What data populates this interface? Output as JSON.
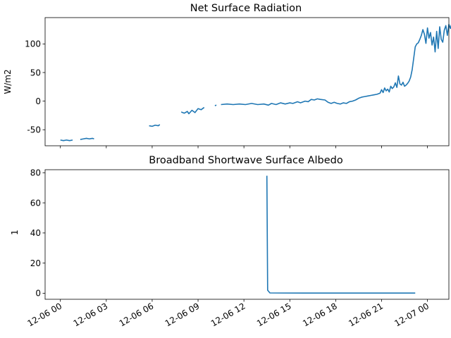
{
  "chart_data": [
    {
      "type": "line",
      "title": "Net Surface Radiation",
      "xlabel": "",
      "ylabel": "W/m2",
      "x_unit": "hours since 12-06 00:00",
      "xlim": [
        -2.1,
        26.6
      ],
      "ylim": [
        -78,
        146
      ],
      "yticks": [
        -50,
        0,
        50,
        100
      ],
      "show_x_tick_labels": false,
      "grid": false,
      "color": "#1f77b4",
      "segments": [
        [
          [
            0.0,
            -68
          ],
          [
            0.2,
            -69
          ],
          [
            0.4,
            -68
          ],
          [
            0.6,
            -69
          ],
          [
            0.8,
            -68
          ]
        ],
        [
          [
            1.3,
            -67
          ],
          [
            1.5,
            -66
          ],
          [
            1.7,
            -65
          ],
          [
            1.9,
            -66
          ],
          [
            2.1,
            -65
          ],
          [
            2.2,
            -66
          ]
        ],
        [
          [
            5.8,
            -43
          ],
          [
            6.0,
            -44
          ],
          [
            6.2,
            -42
          ],
          [
            6.4,
            -43
          ],
          [
            6.5,
            -41
          ]
        ],
        [
          [
            7.9,
            -19
          ],
          [
            8.1,
            -21
          ],
          [
            8.3,
            -18
          ],
          [
            8.4,
            -22
          ],
          [
            8.6,
            -16
          ],
          [
            8.8,
            -20
          ],
          [
            9.0,
            -13
          ],
          [
            9.2,
            -15
          ],
          [
            9.4,
            -11
          ]
        ],
        [
          [
            10.1,
            -8
          ],
          [
            10.2,
            -7
          ]
        ],
        [
          [
            10.5,
            -6
          ],
          [
            10.9,
            -5
          ],
          [
            11.3,
            -6
          ],
          [
            11.7,
            -5
          ],
          [
            12.1,
            -6
          ],
          [
            12.5,
            -4
          ],
          [
            12.9,
            -6
          ],
          [
            13.3,
            -5
          ],
          [
            13.6,
            -7
          ],
          [
            13.8,
            -4
          ],
          [
            14.1,
            -6
          ],
          [
            14.4,
            -3
          ],
          [
            14.7,
            -5
          ],
          [
            15.0,
            -3
          ],
          [
            15.2,
            -4
          ],
          [
            15.5,
            -1
          ],
          [
            15.7,
            -3
          ],
          [
            16.0,
            0
          ],
          [
            16.2,
            -1
          ],
          [
            16.4,
            3
          ],
          [
            16.6,
            2
          ],
          [
            16.8,
            4
          ],
          [
            17.0,
            3
          ],
          [
            17.3,
            2
          ],
          [
            17.5,
            -2
          ],
          [
            17.7,
            -4
          ],
          [
            17.9,
            -2
          ],
          [
            18.1,
            -4
          ],
          [
            18.3,
            -5
          ],
          [
            18.5,
            -3
          ],
          [
            18.7,
            -4
          ],
          [
            18.9,
            -1
          ],
          [
            19.1,
            0
          ],
          [
            19.3,
            2
          ],
          [
            19.5,
            5
          ],
          [
            19.7,
            7
          ],
          [
            19.9,
            8
          ],
          [
            20.1,
            9
          ],
          [
            20.3,
            10
          ],
          [
            20.5,
            11
          ],
          [
            20.7,
            12
          ],
          [
            20.9,
            14
          ],
          [
            21.0,
            20
          ],
          [
            21.1,
            15
          ],
          [
            21.2,
            23
          ],
          [
            21.3,
            18
          ],
          [
            21.4,
            21
          ],
          [
            21.5,
            16
          ],
          [
            21.6,
            26
          ],
          [
            21.7,
            22
          ],
          [
            21.8,
            25
          ],
          [
            21.9,
            32
          ],
          [
            22.0,
            24
          ],
          [
            22.1,
            44
          ],
          [
            22.2,
            30
          ],
          [
            22.3,
            28
          ],
          [
            22.4,
            33
          ],
          [
            22.5,
            26
          ],
          [
            22.6,
            28
          ],
          [
            22.7,
            31
          ],
          [
            22.8,
            35
          ],
          [
            22.9,
            42
          ],
          [
            23.0,
            55
          ],
          [
            23.1,
            75
          ],
          [
            23.2,
            95
          ],
          [
            23.3,
            100
          ],
          [
            23.4,
            102
          ],
          [
            23.5,
            108
          ],
          [
            23.6,
            115
          ],
          [
            23.7,
            125
          ],
          [
            23.8,
            117
          ],
          [
            23.9,
            101
          ],
          [
            24.0,
            128
          ],
          [
            24.1,
            110
          ],
          [
            24.2,
            120
          ],
          [
            24.3,
            98
          ],
          [
            24.4,
            112
          ],
          [
            24.5,
            86
          ],
          [
            24.6,
            122
          ],
          [
            24.7,
            92
          ],
          [
            24.8,
            130
          ],
          [
            24.9,
            108
          ],
          [
            25.0,
            103
          ],
          [
            25.1,
            124
          ],
          [
            25.2,
            132
          ],
          [
            25.3,
            115
          ],
          [
            25.4,
            134
          ],
          [
            25.5,
            127
          ],
          [
            25.6,
            137
          ],
          [
            25.7,
            125
          ],
          [
            25.8,
            131
          ],
          [
            25.9,
            118
          ],
          [
            26.0,
            124
          ],
          [
            26.1,
            113
          ]
        ]
      ]
    },
    {
      "type": "line",
      "title": "Broadband Shortwave Surface Albedo",
      "xlabel": "",
      "ylabel": "1",
      "x_unit": "hours since 12-06 00:00",
      "xlim": [
        -1.0,
        25.4
      ],
      "ylim": [
        -4,
        82
      ],
      "yticks": [
        0,
        20,
        40,
        60,
        80
      ],
      "xticks": [
        "12-06 00",
        "12-06 03",
        "12-06 06",
        "12-06 09",
        "12-06 12",
        "12-06 15",
        "12-06 18",
        "12-06 21",
        "12-07 00"
      ],
      "xtick_hours": [
        0,
        3,
        6,
        9,
        12,
        15,
        18,
        21,
        24
      ],
      "grid": false,
      "color": "#1f77b4",
      "segments": [
        [
          [
            13.5,
            78
          ],
          [
            13.55,
            2
          ],
          [
            13.7,
            0.2
          ],
          [
            14.5,
            0.15
          ],
          [
            16.0,
            0.1
          ],
          [
            18.0,
            0.1
          ],
          [
            20.0,
            0.1
          ],
          [
            22.0,
            0.1
          ],
          [
            23.2,
            0.1
          ]
        ]
      ]
    }
  ]
}
